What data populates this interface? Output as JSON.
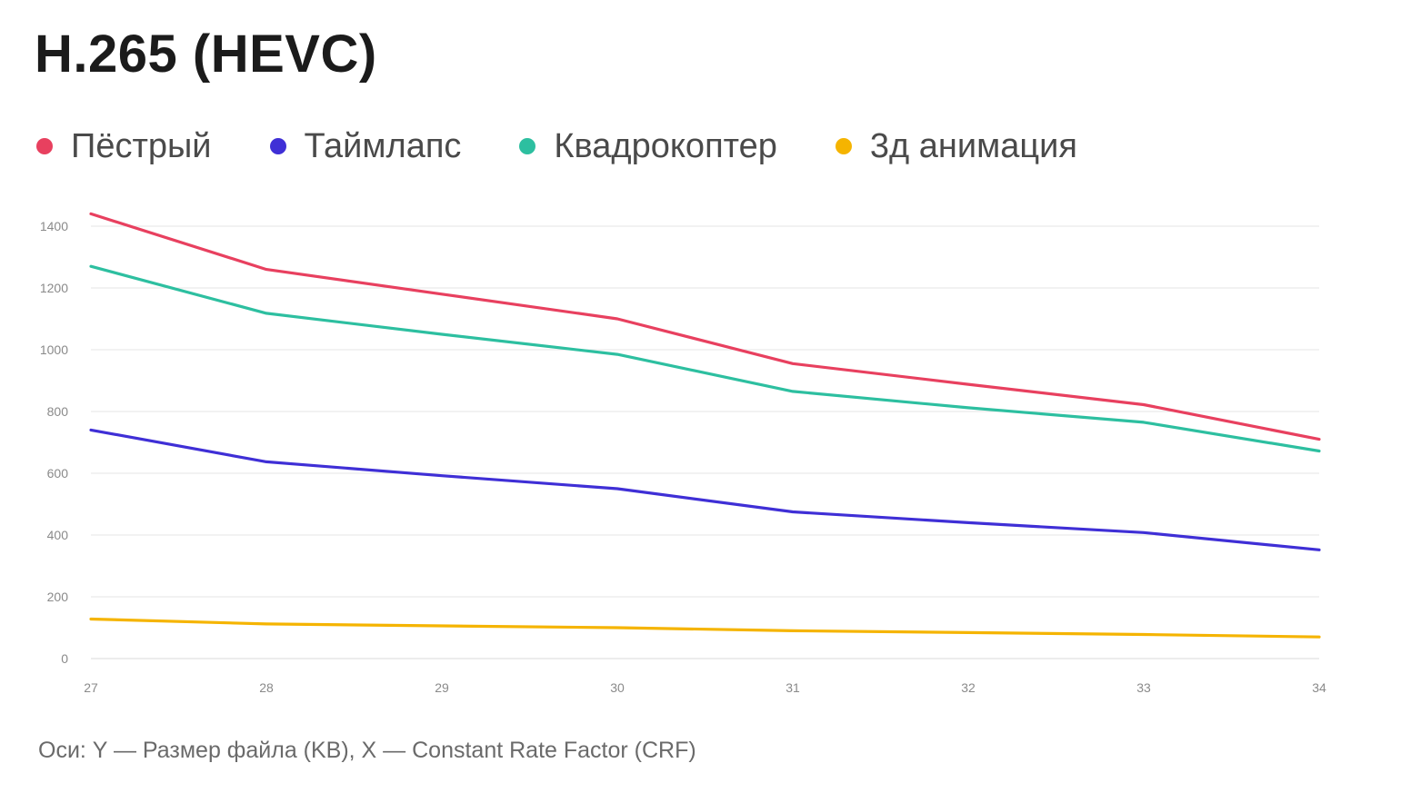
{
  "title": "H.265 (HEVC)",
  "caption": "Оси: Y — Размер файла (KB), X — Constant Rate Factor (CRF)",
  "chart_data": {
    "type": "line",
    "title": "H.265 (HEVC)",
    "xlabel": "Constant Rate Factor (CRF)",
    "ylabel": "Размер файла (KB)",
    "x": [
      27,
      28,
      29,
      30,
      31,
      32,
      33,
      34
    ],
    "xlim": [
      27,
      34
    ],
    "ylim": [
      0,
      1400
    ],
    "yticks": [
      0,
      200,
      400,
      600,
      800,
      1000,
      1200,
      1400
    ],
    "grid": true,
    "legend_position": "top-left",
    "series": [
      {
        "name": "Пёстрый",
        "color": "#e8405f",
        "values": [
          1440,
          1260,
          1180,
          1100,
          955,
          888,
          822,
          710
        ]
      },
      {
        "name": "Таймлапс",
        "color": "#3f2fd6",
        "values": [
          740,
          637,
          592,
          550,
          475,
          440,
          408,
          352
        ]
      },
      {
        "name": "Квадрокоптер",
        "color": "#2dbfa0",
        "values": [
          1270,
          1118,
          1050,
          985,
          865,
          812,
          765,
          672
        ]
      },
      {
        "name": "3д анимация",
        "color": "#f5b400",
        "values": [
          128,
          112,
          106,
          100,
          90,
          84,
          78,
          70
        ]
      }
    ]
  }
}
